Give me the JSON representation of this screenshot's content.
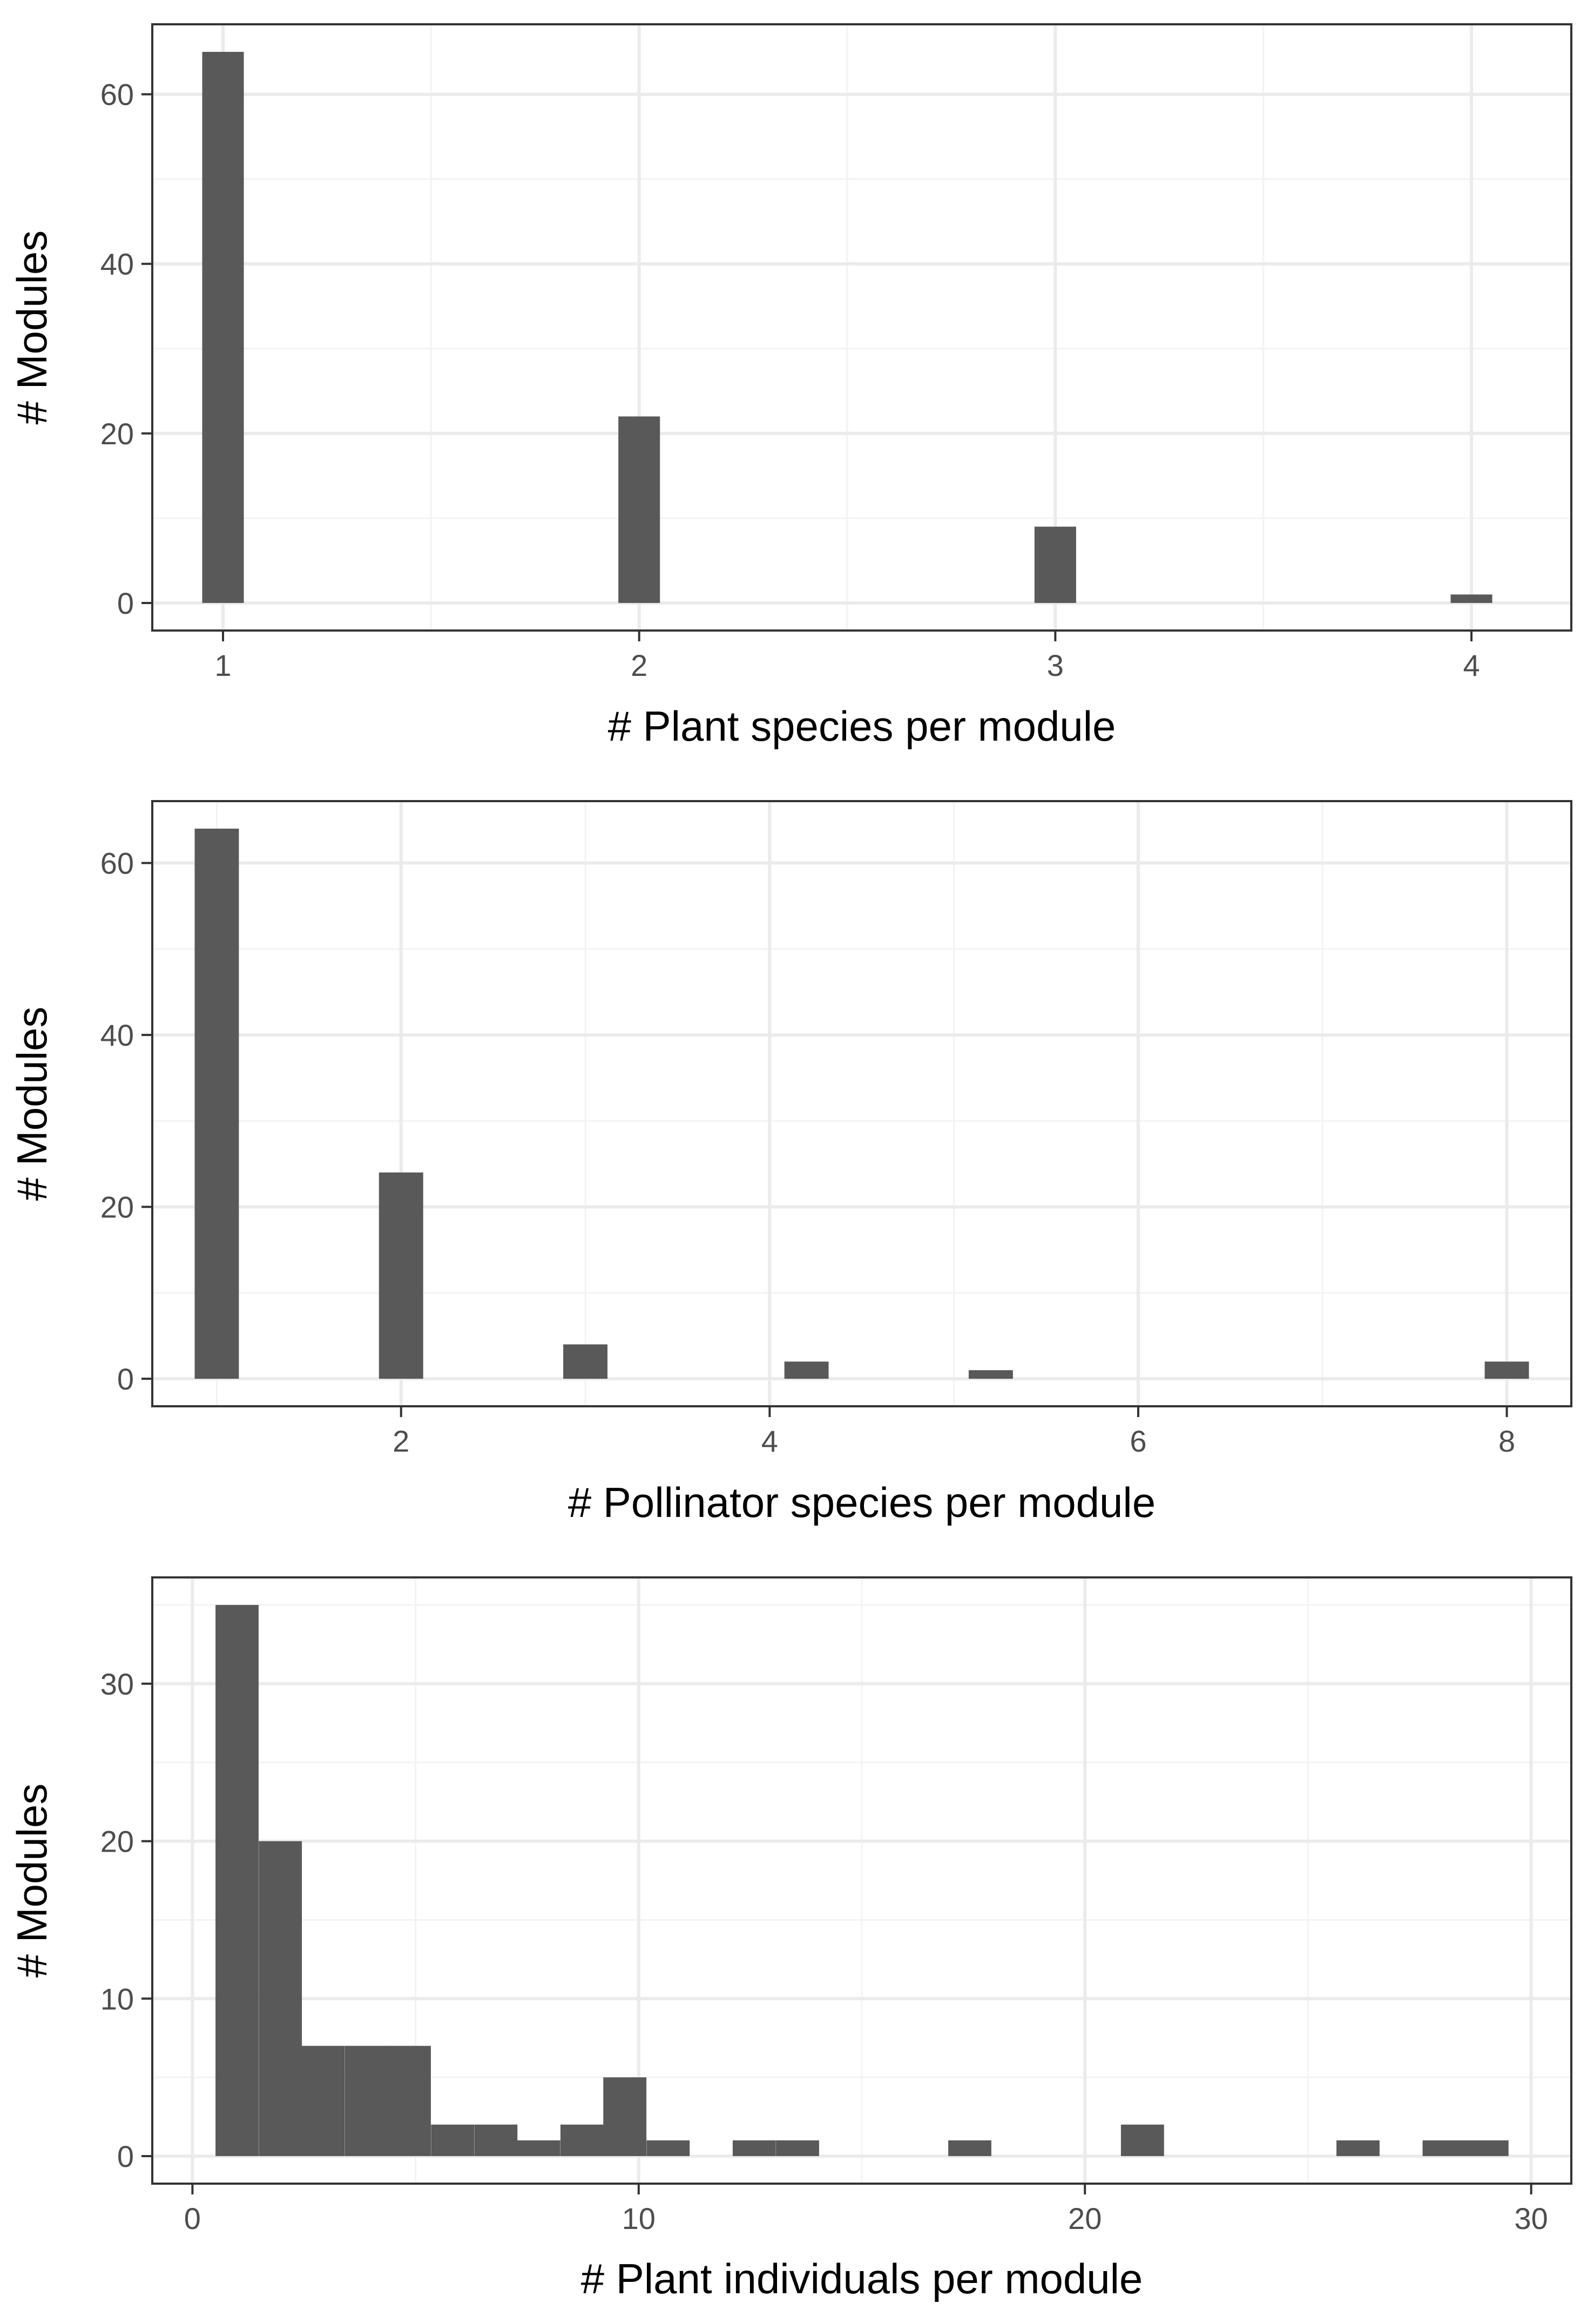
{
  "colors": {
    "bar": "#595959",
    "panel_border": "#333333",
    "grid_major": "#ebebeb",
    "grid_minor": "#f3f3f3",
    "tick_label": "#4d4d4d",
    "background": "#ffffff"
  },
  "chart_data": [
    {
      "type": "bar",
      "xlabel": "# Plant species per module",
      "ylabel": "# Modules",
      "xlim": [
        0.83,
        4.24
      ],
      "ylim": [
        -3.25,
        68.25
      ],
      "x_ticks": [
        1,
        2,
        3,
        4
      ],
      "x_tick_labels": [
        "1",
        "2",
        "3",
        "4"
      ],
      "y_ticks": [
        0,
        20,
        40,
        60
      ],
      "y_tick_labels": [
        "0",
        "20",
        "40",
        "60"
      ],
      "bin_width": 0.1,
      "grid": true,
      "bars": [
        {
          "x": 1,
          "count": 65
        },
        {
          "x": 2,
          "count": 22
        },
        {
          "x": 3,
          "count": 9
        },
        {
          "x": 4,
          "count": 1
        }
      ]
    },
    {
      "type": "bar",
      "xlabel": "# Pollinator species per module",
      "ylabel": "# Modules",
      "xlim": [
        0.65,
        8.35
      ],
      "ylim": [
        -3.2,
        67.2
      ],
      "x_ticks": [
        2,
        4,
        6,
        8
      ],
      "x_tick_labels": [
        "2",
        "4",
        "6",
        "8"
      ],
      "y_ticks": [
        0,
        20,
        40,
        60
      ],
      "y_tick_labels": [
        "0",
        "20",
        "40",
        "60"
      ],
      "bin_width": 0.24,
      "grid": true,
      "bars": [
        {
          "x": 1,
          "count": 64
        },
        {
          "x": 2,
          "count": 24
        },
        {
          "x": 3,
          "count": 4
        },
        {
          "x": 4.2,
          "count": 2
        },
        {
          "x": 5.2,
          "count": 1
        },
        {
          "x": 8,
          "count": 2
        }
      ]
    },
    {
      "type": "bar",
      "xlabel": "# Plant individuals per module",
      "ylabel": "# Modules",
      "xlim": [
        -0.9,
        30.9
      ],
      "ylim": [
        -1.75,
        36.75
      ],
      "x_ticks": [
        0,
        10,
        20,
        30
      ],
      "x_tick_labels": [
        "0",
        "10",
        "20",
        "30"
      ],
      "y_ticks": [
        0,
        10,
        20,
        30
      ],
      "y_tick_labels": [
        "0",
        "10",
        "20",
        "30"
      ],
      "bin_width": 0.966,
      "grid": true,
      "bars": [
        {
          "x": 1.0,
          "count": 35
        },
        {
          "x": 1.97,
          "count": 20
        },
        {
          "x": 2.93,
          "count": 7
        },
        {
          "x": 3.9,
          "count": 7
        },
        {
          "x": 4.86,
          "count": 7
        },
        {
          "x": 5.83,
          "count": 2
        },
        {
          "x": 6.8,
          "count": 2
        },
        {
          "x": 7.76,
          "count": 1
        },
        {
          "x": 8.73,
          "count": 2
        },
        {
          "x": 9.69,
          "count": 5
        },
        {
          "x": 10.66,
          "count": 1
        },
        {
          "x": 12.59,
          "count": 1
        },
        {
          "x": 13.56,
          "count": 1
        },
        {
          "x": 17.42,
          "count": 1
        },
        {
          "x": 21.29,
          "count": 2
        },
        {
          "x": 26.12,
          "count": 1
        },
        {
          "x": 28.05,
          "count": 1
        },
        {
          "x": 29.01,
          "count": 1
        }
      ]
    }
  ]
}
